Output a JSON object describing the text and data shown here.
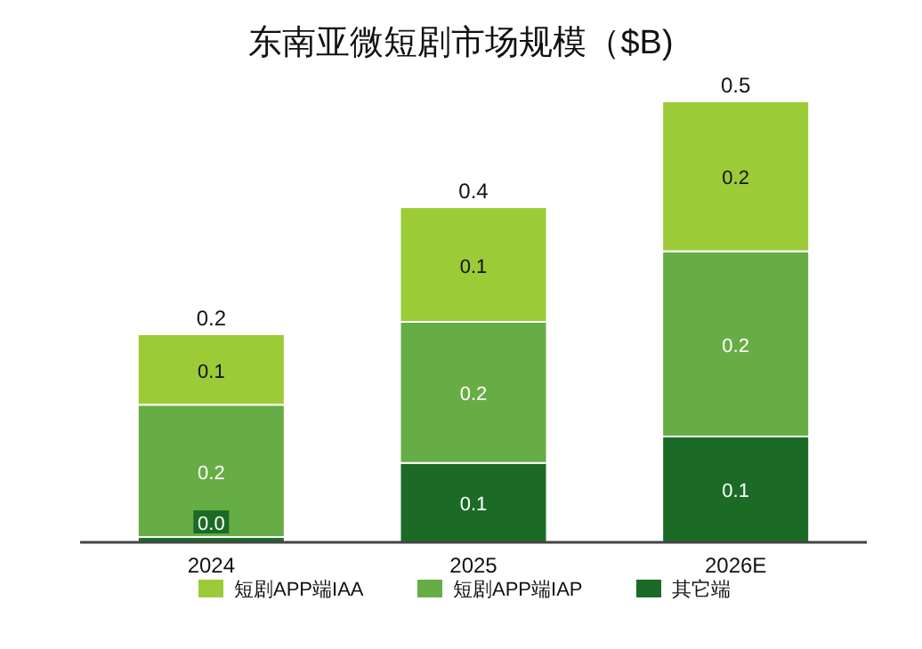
{
  "chart_data": {
    "type": "bar",
    "title": "东南亚微短剧市场规模（$B)",
    "stacked": true,
    "categories": [
      "2024",
      "2025",
      "2026E"
    ],
    "series": [
      {
        "name": "其它端",
        "color": "#1b6b27",
        "values": [
          0.006,
          0.09,
          0.12
        ],
        "value_labels": [
          "0.0",
          "0.1",
          "0.1"
        ]
      },
      {
        "name": "短剧APP端IAP",
        "color": "#67ad45",
        "values": [
          0.15,
          0.16,
          0.21
        ],
        "value_labels": [
          "0.2",
          "0.2",
          "0.2"
        ]
      },
      {
        "name": "短剧APP端IAA",
        "color": "#9bcb37",
        "values": [
          0.08,
          0.13,
          0.17
        ],
        "value_labels": [
          "0.1",
          "0.1",
          "0.2"
        ]
      }
    ],
    "totals": [
      "0.2",
      "0.4",
      "0.5"
    ],
    "legend": "bottom"
  }
}
